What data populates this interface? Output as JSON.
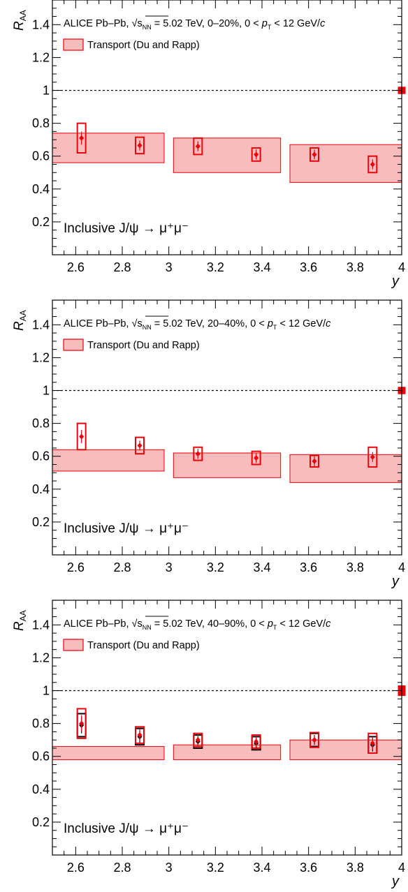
{
  "chart_data": [
    {
      "type": "scatter",
      "xlabel": "y",
      "ylabel_main": "R",
      "ylabel_sub": "AA",
      "xlim": [
        2.5,
        4.0
      ],
      "ylim": [
        0.0,
        1.55
      ],
      "xticks": [
        2.6,
        2.8,
        3.0,
        3.2,
        3.4,
        3.6,
        3.8,
        4.0
      ],
      "xtick_labels": [
        "2.6",
        "2.8",
        "3",
        "3.2",
        "3.4",
        "3.6",
        "3.8",
        "4"
      ],
      "yticks": [
        0.2,
        0.4,
        0.6,
        0.8,
        1.0,
        1.2,
        1.4
      ],
      "ytick_labels": [
        "0.2",
        "0.4",
        "0.6",
        "0.8",
        "1",
        "1.2",
        "1.4"
      ],
      "experiment": "ALICE Pb–Pb,",
      "sqrt_s": "√s",
      "sqrt_sub": "NN",
      "energy": "= 5.02 TeV, 0–20%, 0 <",
      "pt_var": "p",
      "pt_sub": "T",
      "pt_range": "< 12 GeV/",
      "pt_unit_c": "c",
      "legend_label": "Transport (Du and Rapp)",
      "process": "Inclusive J/ψ → μ⁺μ⁻",
      "reference_line": 1.0,
      "global_unc": [
        0.98,
        1.02
      ],
      "model_bands": [
        {
          "x": [
            2.5,
            2.98
          ],
          "y": [
            0.56,
            0.74
          ]
        },
        {
          "x": [
            3.02,
            3.48
          ],
          "y": [
            0.5,
            0.71
          ]
        },
        {
          "x": [
            3.52,
            4.0
          ],
          "y": [
            0.44,
            0.67
          ]
        }
      ],
      "series": [
        {
          "name": "",
          "x": [
            2.625,
            2.875,
            3.125,
            3.375,
            3.625,
            3.875
          ],
          "y": [
            0.71,
            0.665,
            0.66,
            0.61,
            0.61,
            0.55
          ],
          "stat": [
            0.04,
            0.03,
            0.03,
            0.03,
            0.03,
            0.03
          ],
          "syst": [
            0.09,
            0.05,
            0.05,
            0.04,
            0.04,
            0.05
          ],
          "color": "#e8000b"
        }
      ]
    },
    {
      "type": "scatter",
      "xlabel": "y",
      "ylabel_main": "R",
      "ylabel_sub": "AA",
      "xlim": [
        2.5,
        4.0
      ],
      "ylim": [
        0.0,
        1.55
      ],
      "xticks": [
        2.6,
        2.8,
        3.0,
        3.2,
        3.4,
        3.6,
        3.8,
        4.0
      ],
      "xtick_labels": [
        "2.6",
        "2.8",
        "3",
        "3.2",
        "3.4",
        "3.6",
        "3.8",
        "4"
      ],
      "yticks": [
        0.2,
        0.4,
        0.6,
        0.8,
        1.0,
        1.2,
        1.4
      ],
      "ytick_labels": [
        "0.2",
        "0.4",
        "0.6",
        "0.8",
        "1",
        "1.2",
        "1.4"
      ],
      "experiment": "ALICE Pb–Pb,",
      "sqrt_s": "√s",
      "sqrt_sub": "NN",
      "energy": "= 5.02 TeV, 20–40%, 0 <",
      "pt_var": "p",
      "pt_sub": "T",
      "pt_range": "< 12 GeV/",
      "pt_unit_c": "c",
      "legend_label": "Transport (Du and Rapp)",
      "process": "Inclusive J/ψ → μ⁺μ⁻",
      "reference_line": 1.0,
      "global_unc": [
        0.98,
        1.02
      ],
      "model_bands": [
        {
          "x": [
            2.5,
            2.98
          ],
          "y": [
            0.51,
            0.64
          ]
        },
        {
          "x": [
            3.02,
            3.48
          ],
          "y": [
            0.47,
            0.62
          ]
        },
        {
          "x": [
            3.52,
            4.0
          ],
          "y": [
            0.44,
            0.61
          ]
        }
      ],
      "series": [
        {
          "name": "",
          "x": [
            2.625,
            2.875,
            3.125,
            3.375,
            3.625,
            3.875
          ],
          "y": [
            0.72,
            0.665,
            0.615,
            0.59,
            0.57,
            0.595
          ],
          "stat": [
            0.04,
            0.03,
            0.03,
            0.03,
            0.03,
            0.03
          ],
          "syst": [
            0.08,
            0.05,
            0.04,
            0.04,
            0.035,
            0.06
          ],
          "color": "#e8000b"
        }
      ]
    },
    {
      "type": "scatter",
      "xlabel": "y",
      "ylabel_main": "R",
      "ylabel_sub": "AA",
      "xlim": [
        2.5,
        4.0
      ],
      "ylim": [
        0.0,
        1.55
      ],
      "xticks": [
        2.6,
        2.8,
        3.0,
        3.2,
        3.4,
        3.6,
        3.8,
        4.0
      ],
      "xtick_labels": [
        "2.6",
        "2.8",
        "3",
        "3.2",
        "3.4",
        "3.6",
        "3.8",
        "4"
      ],
      "yticks": [
        0.2,
        0.4,
        0.6,
        0.8,
        1.0,
        1.2,
        1.4
      ],
      "ytick_labels": [
        "0.2",
        "0.4",
        "0.6",
        "0.8",
        "1",
        "1.2",
        "1.4"
      ],
      "experiment": "ALICE Pb–Pb,",
      "sqrt_s": "√s",
      "sqrt_sub": "NN",
      "energy": "= 5.02 TeV, 40–90%, 0 <",
      "pt_var": "p",
      "pt_sub": "T",
      "pt_range": "< 12 GeV/",
      "pt_unit_c": "c",
      "legend_label": "Transport (Du and Rapp)",
      "process": "Inclusive J/ψ → μ⁺μ⁻",
      "reference_line": 1.0,
      "global_unc": [
        0.97,
        1.03
      ],
      "model_bands": [
        {
          "x": [
            2.5,
            2.98
          ],
          "y": [
            0.58,
            0.66
          ]
        },
        {
          "x": [
            3.02,
            3.48
          ],
          "y": [
            0.58,
            0.67
          ]
        },
        {
          "x": [
            3.52,
            4.0
          ],
          "y": [
            0.58,
            0.7
          ]
        }
      ],
      "series": [
        {
          "name": "",
          "x": [
            2.625,
            2.875,
            3.125,
            3.375,
            3.625,
            3.875
          ],
          "y": [
            0.79,
            0.72,
            0.69,
            0.68,
            0.7,
            0.67
          ],
          "stat": [
            0.05,
            0.04,
            0.03,
            0.03,
            0.03,
            0.04
          ],
          "syst": [
            0.07,
            0.05,
            0.04,
            0.04,
            0.04,
            0.05
          ],
          "color": "#000000"
        },
        {
          "name": "",
          "x": [
            2.625,
            2.875,
            3.125,
            3.375,
            3.625,
            3.875
          ],
          "y": [
            0.8,
            0.73,
            0.7,
            0.69,
            0.7,
            0.68
          ],
          "stat": [
            0.05,
            0.04,
            0.03,
            0.03,
            0.03,
            0.04
          ],
          "syst": [
            0.09,
            0.05,
            0.04,
            0.04,
            0.045,
            0.06
          ],
          "color": "#e8000b"
        }
      ]
    }
  ]
}
